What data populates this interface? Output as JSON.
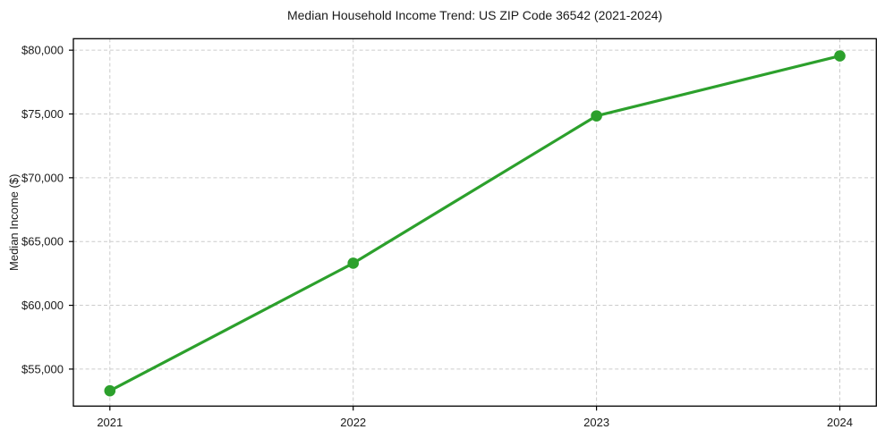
{
  "chart_data": {
    "type": "line",
    "title": "Median Household Income Trend: US ZIP Code 36542 (2021-2024)",
    "xlabel": "",
    "ylabel": "Median Income ($)",
    "x": [
      2021,
      2022,
      2023,
      2024
    ],
    "series": [
      {
        "name": "Median Household Income",
        "values": [
          53300,
          63300,
          74850,
          79550
        ]
      }
    ],
    "xticks": [
      2021,
      2022,
      2023,
      2024
    ],
    "xtick_labels": [
      "2021",
      "2022",
      "2023",
      "2024"
    ],
    "yticks": [
      55000,
      60000,
      65000,
      70000,
      75000,
      80000
    ],
    "ytick_labels": [
      "$55,000",
      "$60,000",
      "$65,000",
      "$70,000",
      "$75,000",
      "$80,000"
    ],
    "xlim": [
      2020.85,
      2024.15
    ],
    "ylim": [
      52100,
      80900
    ],
    "grid": true,
    "grid_style": "dashed",
    "legend": false,
    "line_color": "#2ca02c",
    "marker": "circle",
    "marker_color": "#2ca02c",
    "grid_color": "#cccccc",
    "axis_color": "#000000",
    "text_color": "#1a1a1a",
    "background": "#ffffff"
  }
}
